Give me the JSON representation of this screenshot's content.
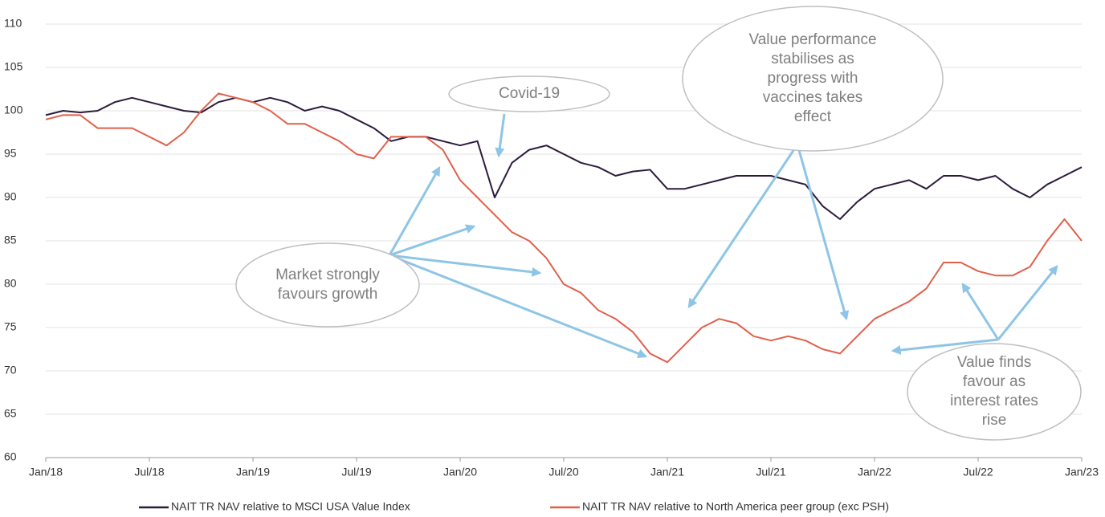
{
  "chart_data": {
    "type": "line",
    "x": [
      "Jan/18",
      "Feb/18",
      "Mar/18",
      "Apr/18",
      "May/18",
      "Jun/18",
      "Jul/18",
      "Aug/18",
      "Sep/18",
      "Oct/18",
      "Nov/18",
      "Dec/18",
      "Jan/19",
      "Feb/19",
      "Mar/19",
      "Apr/19",
      "May/19",
      "Jun/19",
      "Jul/19",
      "Aug/19",
      "Sep/19",
      "Oct/19",
      "Nov/19",
      "Dec/19",
      "Jan/20",
      "Feb/20",
      "Mar/20",
      "Apr/20",
      "May/20",
      "Jun/20",
      "Jul/20",
      "Aug/20",
      "Sep/20",
      "Oct/20",
      "Nov/20",
      "Dec/20",
      "Jan/21",
      "Feb/21",
      "Mar/21",
      "Apr/21",
      "May/21",
      "Jun/21",
      "Jul/21",
      "Aug/21",
      "Sep/21",
      "Oct/21",
      "Nov/21",
      "Dec/21",
      "Jan/22",
      "Feb/22",
      "Mar/22",
      "Apr/22",
      "May/22",
      "Jun/22",
      "Jul/22",
      "Aug/22",
      "Sep/22",
      "Oct/22",
      "Nov/22",
      "Dec/22",
      "Jan/23"
    ],
    "series": [
      {
        "name": "NAIT TR NAV relative to MSCI USA Value Index",
        "color": "#2d1a3c",
        "values": [
          99.5,
          100,
          99.8,
          100,
          101,
          101.5,
          101,
          100.5,
          100,
          99.8,
          101,
          101.5,
          101,
          101.5,
          101,
          100,
          100.5,
          100,
          99,
          98,
          96.5,
          97,
          97,
          96.5,
          96,
          96.5,
          90,
          94,
          95.5,
          96,
          95,
          94,
          93.5,
          92.5,
          93,
          93.2,
          91,
          91,
          91.5,
          92,
          92.5,
          92.5,
          92.5,
          92,
          91.5,
          89,
          87.5,
          89.5,
          91,
          91.5,
          92,
          91,
          92.5,
          92.5,
          92,
          92.5,
          91,
          90,
          91.5,
          92.5,
          93.5
        ]
      },
      {
        "name": "NAIT TR NAV relative to North America peer group (exc PSH)",
        "color": "#e0604a",
        "values": [
          99,
          99.5,
          99.5,
          98,
          98,
          98,
          97,
          96,
          97.5,
          100,
          102,
          101.5,
          101,
          100,
          98.5,
          98.5,
          97.5,
          96.5,
          95,
          94.5,
          97,
          97,
          97,
          95.5,
          92,
          90,
          88,
          86,
          85,
          83,
          80,
          79,
          77,
          76,
          74.5,
          72,
          71,
          73,
          75,
          76,
          75.5,
          74,
          73.5,
          74,
          73.5,
          72.5,
          72,
          74,
          76,
          77,
          78,
          79.5,
          82.5,
          82.5,
          81.5,
          81,
          81,
          82,
          85,
          87.5,
          85
        ]
      }
    ],
    "xticks": [
      "Jan/18",
      "Jul/18",
      "Jan/19",
      "Jul/19",
      "Jan/20",
      "Jul/20",
      "Jan/21",
      "Jul/21",
      "Jan/22",
      "Jul/22",
      "Jan/23"
    ],
    "ylim": [
      60,
      110
    ],
    "yticks": [
      60,
      65,
      70,
      75,
      80,
      85,
      90,
      95,
      100,
      105,
      110
    ],
    "grid": true,
    "annotations": [
      {
        "lines": [
          "Covid-19"
        ]
      },
      {
        "lines": [
          "Value performance",
          "stabilises as",
          "progress with",
          "vaccines takes",
          "effect"
        ]
      },
      {
        "lines": [
          "Market strongly",
          "favours growth"
        ]
      },
      {
        "lines": [
          "Value finds",
          "favour as",
          "interest rates",
          "rise"
        ]
      }
    ]
  }
}
